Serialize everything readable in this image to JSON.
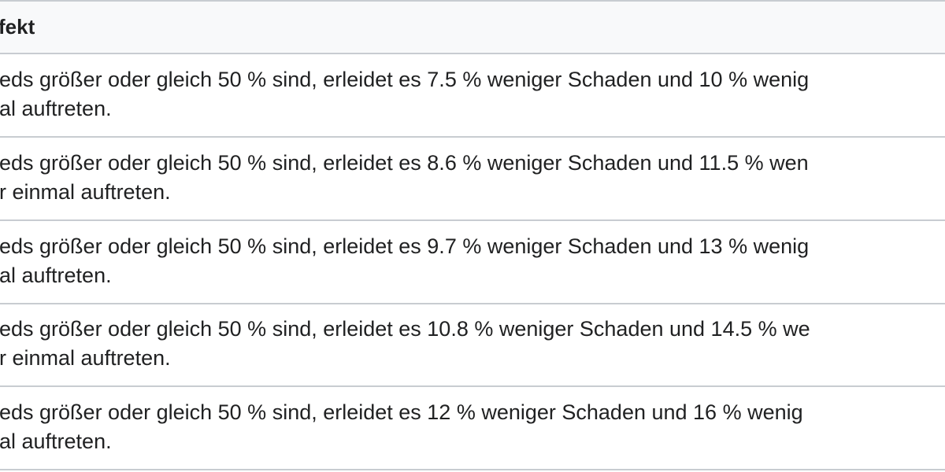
{
  "table": {
    "header": "fekt",
    "rows": [
      {
        "line1": "eds größer oder gleich 50 % sind, erleidet es 7.5 % weniger Schaden und 10 % wenig",
        "line2": "al auftreten."
      },
      {
        "line1": "eds größer oder gleich 50 % sind, erleidet es 8.6 % weniger Schaden und 11.5 % wen",
        "line2": "r einmal auftreten."
      },
      {
        "line1": "eds größer oder gleich 50 % sind, erleidet es 9.7 % weniger Schaden und 13 % wenig",
        "line2": "al auftreten."
      },
      {
        "line1": "eds größer oder gleich 50 % sind, erleidet es 10.8 % weniger Schaden und 14.5 % we",
        "line2": "r einmal auftreten."
      },
      {
        "line1": "eds größer oder gleich 50 % sind, erleidet es 12 % weniger Schaden und 16 % wenig",
        "line2": "al auftreten."
      }
    ]
  }
}
